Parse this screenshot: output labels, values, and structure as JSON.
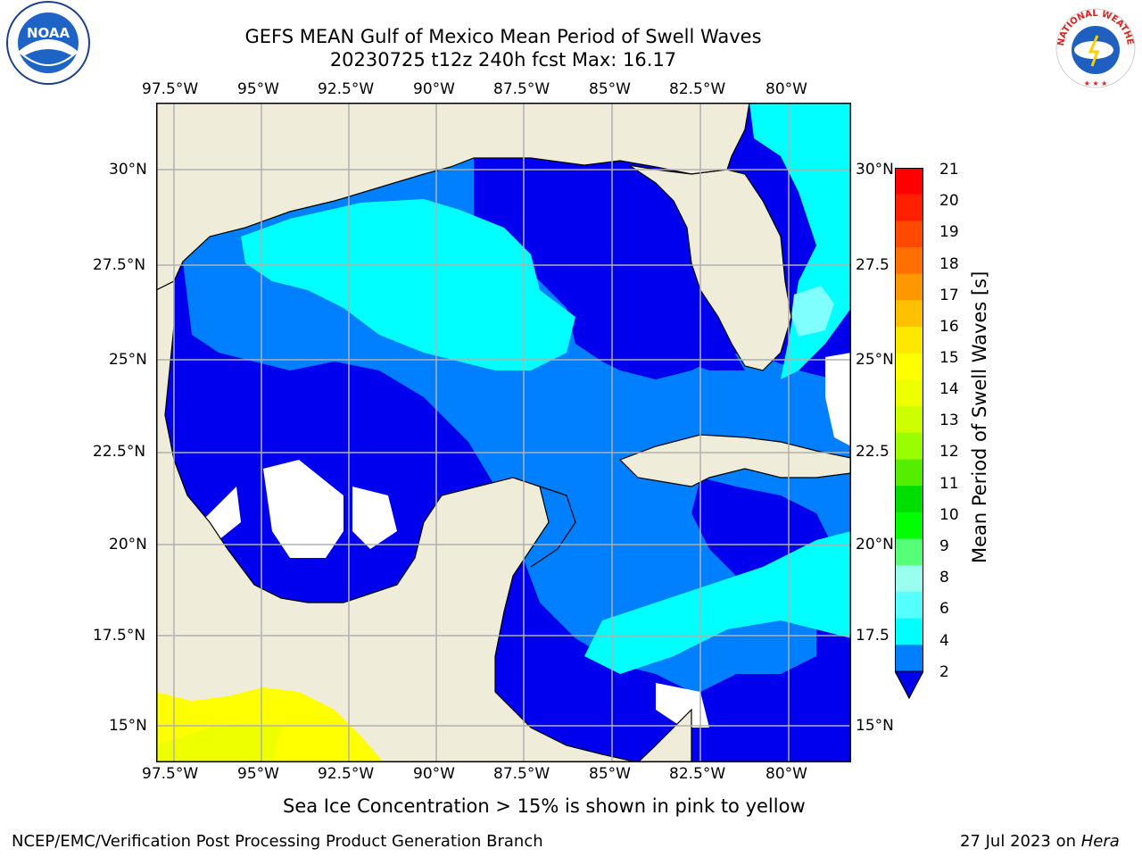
{
  "header": {
    "title_line1": "GEFS MEAN Gulf of Mexico Mean Period of Swell Waves",
    "title_line2": "20230725 t12z 240h fcst   Max: 16.17"
  },
  "logos": {
    "noaa_text": "NOAA",
    "nws_text": "NATIONAL WEATHER SERVICE"
  },
  "map": {
    "lon_labels": [
      "97.5°W",
      "95°W",
      "92.5°W",
      "90°W",
      "87.5°W",
      "85°W",
      "82.5°W",
      "80°W"
    ],
    "lat_labels_left": [
      "30°N",
      "27.5°N",
      "25°N",
      "22.5°N",
      "20°N",
      "17.5°N",
      "15°N"
    ],
    "lat_labels_right": [
      "30°N",
      "27.5",
      "25°N",
      "22.5",
      "20°N",
      "17.5",
      "15°N"
    ],
    "colors": {
      "land": "#efedda",
      "c2_4": "#0000ee",
      "c4_6": "#0080ff",
      "c6_8": "#00ffff",
      "c8_9": "#80ffff",
      "c15_16": "#ffff00",
      "grid": "#b0b0b0"
    }
  },
  "colorbar": {
    "label": "Mean Period of Swell Waves [s]",
    "ticks": [
      "21",
      "20",
      "19",
      "18",
      "17",
      "16",
      "15",
      "14",
      "13",
      "12",
      "11",
      "10",
      "9",
      "8",
      "6",
      "4",
      "2"
    ],
    "colors": [
      "#ff0000",
      "#ff2000",
      "#ff4800",
      "#ff7000",
      "#ff9800",
      "#ffc000",
      "#ffe800",
      "#ffff00",
      "#eeff00",
      "#ccff00",
      "#99ff00",
      "#55ee00",
      "#00dd00",
      "#00ff00",
      "#55ff77",
      "#99ffee",
      "#55ffff",
      "#00ffff",
      "#0080ff"
    ],
    "extend_color": "#0000ee"
  },
  "caption": "Sea Ice Concentration > 15% is shown in pink to yellow",
  "footer": {
    "left": "NCEP/EMC/Verification Post Processing Product Generation Branch",
    "right_prefix": "27 Jul 2023 on ",
    "right_host": "Hera"
  }
}
